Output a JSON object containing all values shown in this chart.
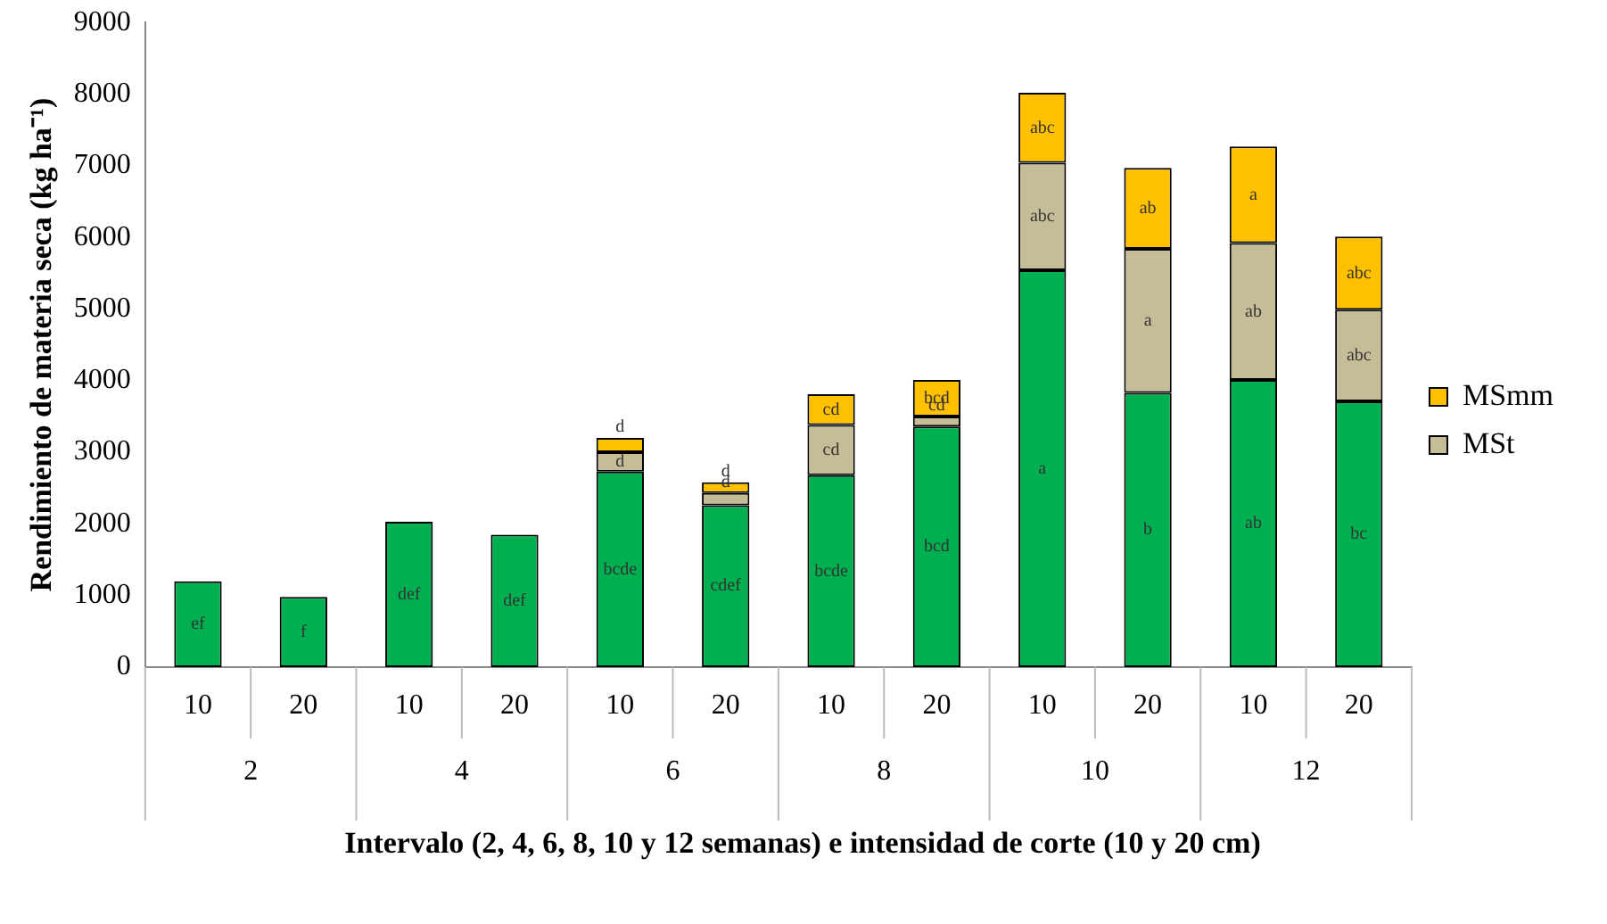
{
  "chart_data": {
    "type": "bar",
    "stacked": true,
    "ylabel": "Rendimiento de materia seca (kg ha⁻¹)",
    "xlabel": "Intervalo  (2, 4, 6, 8, 10 y 12 semanas) e intensidad de corte (10 y 20 cm)",
    "categories": [
      "10",
      "20",
      "10",
      "20",
      "10",
      "20",
      "10",
      "20",
      "10",
      "20",
      "10",
      "20"
    ],
    "annotations": [
      "2",
      "4",
      "6",
      "8",
      "10",
      "12"
    ],
    "series": [
      {
        "color": "#00b050",
        "values": [
          1200,
          980,
          2030,
          1850,
          2730,
          2260,
          2680,
          3360,
          5540,
          3830,
          4010,
          3710
        ],
        "value_labels": [
          "ef",
          "f",
          "def",
          "def",
          "bcde",
          "cdef",
          "bcde",
          "bcd",
          "a",
          "b",
          "ab",
          "bc"
        ]
      },
      {
        "name": "MSt",
        "color": "#c4bd97",
        "values": [
          null,
          null,
          null,
          null,
          270,
          170,
          700,
          140,
          1500,
          2010,
          1910,
          1280
        ],
        "value_labels": [
          null,
          null,
          null,
          null,
          "d",
          "d",
          "cd",
          "cd",
          "abc",
          "a",
          "ab",
          "abc"
        ]
      },
      {
        "name": "MSmm",
        "color": "#ffc000",
        "values": [
          null,
          null,
          null,
          null,
          200,
          150,
          430,
          510,
          980,
          1130,
          1350,
          1020
        ],
        "value_labels": [
          null,
          null,
          null,
          null,
          "d",
          "d",
          "cd",
          "bcd",
          "abc",
          "ab",
          "a",
          "abc"
        ]
      }
    ],
    "ylim": [
      0,
      9000
    ],
    "yticks": [
      0,
      1000,
      2000,
      3000,
      4000,
      5000,
      6000,
      7000,
      8000,
      9000
    ],
    "grid": false,
    "legend": "right"
  }
}
